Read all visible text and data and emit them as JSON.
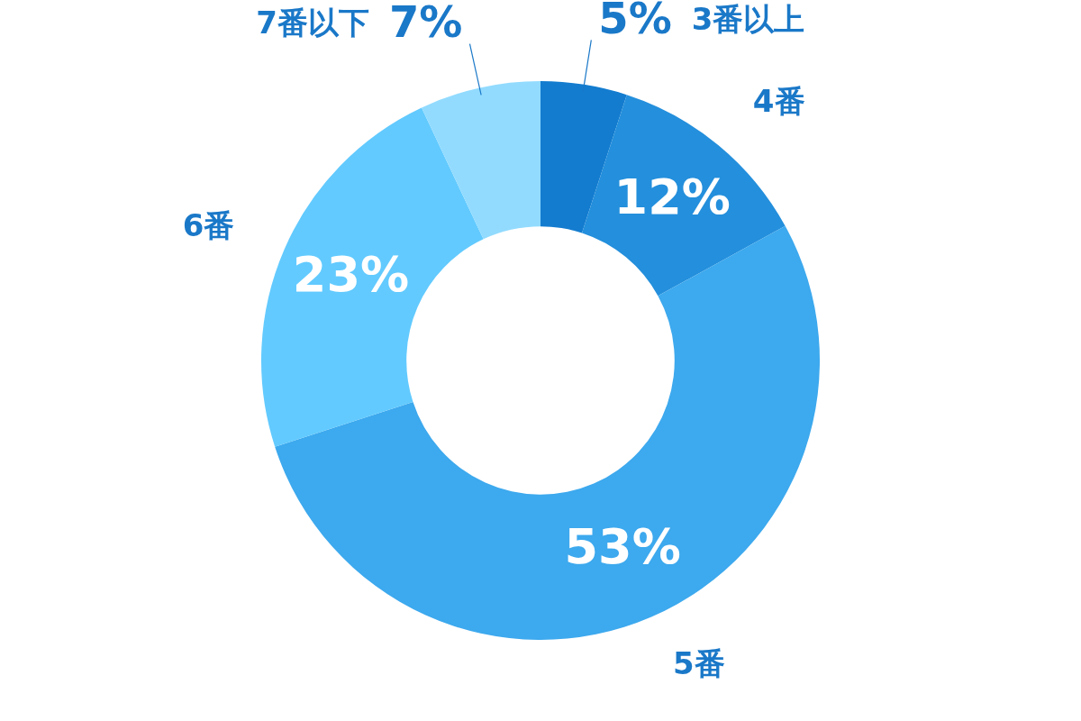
{
  "chart_data": {
    "type": "donut",
    "categories": [
      "3番以上",
      "4番",
      "5番",
      "6番",
      "7番以下"
    ],
    "values": [
      5,
      12,
      53,
      23,
      7
    ],
    "colors": [
      "#137ccf",
      "#248fdc",
      "#3da9ee",
      "#62caff",
      "#92dbff"
    ],
    "value_labels": [
      "5%",
      "12%",
      "53%",
      "23%",
      "7%"
    ],
    "legend": false
  }
}
